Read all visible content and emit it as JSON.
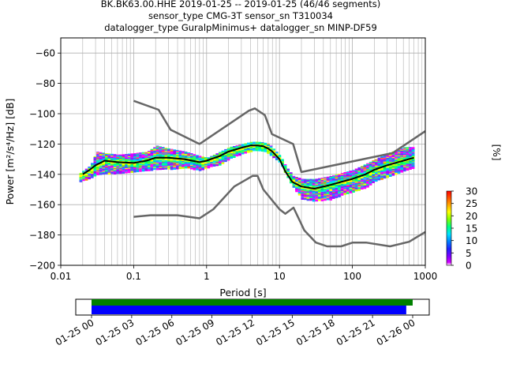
{
  "title": {
    "line1": "BK.BK63.00.HHE   2019-01-25 -- 2019-01-25  (46/46 segments)",
    "line2": "sensor_type CMG-3T sensor_sn T310034",
    "line3": "datalogger_type GuralpMinimus+ datalogger_sn MINP-DF59"
  },
  "colorbar": {
    "label": "[%]",
    "ticks": [
      "0",
      "5",
      "10",
      "15",
      "20",
      "25",
      "30"
    ],
    "range": [
      0,
      30
    ]
  },
  "timeline": {
    "ticks": [
      "01-25 00",
      "01-25 03",
      "01-25 06",
      "01-25 09",
      "01-25 12",
      "01-25 15",
      "01-25 18",
      "01-25 21",
      "01-26 00"
    ],
    "colors": {
      "data": "#008000",
      "psd": "#0000ff"
    },
    "data_coverage": [
      0.0,
      1.0
    ],
    "psd_coverage": [
      0.0,
      0.98
    ]
  },
  "chart_data": {
    "type": "heatmap",
    "title": "BK.BK63.00.HHE   2019-01-25 -- 2019-01-25  (46/46 segments)",
    "xlabel": "Period [s]",
    "ylabel": "Power [m²/s⁴/Hz] [dB]",
    "xscale": "log",
    "xlim": [
      0.01,
      1000
    ],
    "ylim": [
      -200,
      -50
    ],
    "xticks": [
      "0.01",
      "0.1",
      "1",
      "10",
      "100",
      "1000"
    ],
    "yticks": [
      "−60",
      "−80",
      "−100",
      "−120",
      "−140",
      "−160",
      "−180",
      "−200"
    ],
    "grid": true,
    "nlnm": {
      "period": [
        0.1,
        0.17,
        0.4,
        0.8,
        1.24,
        2.4,
        4.3,
        5.0,
        6.0,
        10.0,
        12.0,
        15.6,
        21.9,
        31.6,
        45.0,
        70.0,
        101.0,
        154.0,
        328.0,
        600.0,
        1000.0
      ],
      "power": [
        -168.0,
        -167.0,
        -167.0,
        -169.0,
        -163.0,
        -148.0,
        -141.0,
        -141.0,
        -150.0,
        -163.0,
        -166.0,
        -162.0,
        -177.0,
        -185.0,
        -187.5,
        -187.5,
        -185.0,
        -185.0,
        -187.5,
        -184.5,
        -178.0
      ]
    },
    "nhnm": {
      "period": [
        0.1,
        0.22,
        0.32,
        0.8,
        3.8,
        4.6,
        6.3,
        7.9,
        15.4,
        20.0,
        354.8,
        1000.0
      ],
      "power": [
        -91.5,
        -97.4,
        -110.5,
        -120.0,
        -98.0,
        -96.5,
        -101.0,
        -113.5,
        -120.0,
        -138.5,
        -126.0,
        -111.5
      ]
    },
    "mean": {
      "period": [
        0.02,
        0.025,
        0.03,
        0.04,
        0.06,
        0.1,
        0.15,
        0.2,
        0.3,
        0.5,
        0.8,
        1.0,
        1.5,
        2.0,
        3.0,
        4.0,
        5.0,
        6.0,
        7.0,
        8.0,
        10.0,
        12.0,
        15.0,
        20.0,
        30.0,
        50.0,
        70.0,
        100.0,
        150.0,
        200.0,
        300.0,
        500.0,
        700.0
      ],
      "power": [
        -140.0,
        -137.0,
        -134.0,
        -131.0,
        -132.0,
        -132.5,
        -131.0,
        -129.0,
        -129.0,
        -130.0,
        -132.0,
        -131.0,
        -128.0,
        -125.0,
        -122.5,
        -121.0,
        -121.0,
        -121.5,
        -123.0,
        -125.0,
        -130.0,
        -138.0,
        -145.0,
        -148.0,
        -149.5,
        -147.0,
        -145.0,
        -143.0,
        -140.0,
        -137.0,
        -134.0,
        -131.0,
        -129.0
      ]
    },
    "band": {
      "period": [
        0.018,
        0.025,
        0.03,
        0.04,
        0.06,
        0.1,
        0.15,
        0.2,
        0.3,
        0.5,
        0.8,
        1.0,
        1.5,
        2.0,
        3.0,
        4.0,
        5.0,
        6.0,
        7.0,
        8.0,
        10.0,
        12.0,
        15.0,
        20.0,
        30.0,
        50.0,
        70.0,
        100.0,
        150.0,
        200.0,
        300.0,
        500.0,
        700.0
      ],
      "upper": [
        -139.0,
        -134.0,
        -125.0,
        -126.0,
        -127.0,
        -126.0,
        -125.0,
        -121.0,
        -123.0,
        -125.0,
        -128.0,
        -129.0,
        -125.0,
        -122.0,
        -120.0,
        -118.5,
        -118.5,
        -119.0,
        -120.0,
        -123.0,
        -128.0,
        -135.0,
        -141.0,
        -143.0,
        -143.0,
        -141.0,
        -139.0,
        -137.0,
        -133.0,
        -130.0,
        -126.0,
        -122.0,
        -122.0
      ],
      "lower": [
        -144.0,
        -142.0,
        -140.0,
        -139.0,
        -139.0,
        -138.0,
        -137.0,
        -136.0,
        -136.0,
        -135.0,
        -137.0,
        -135.0,
        -133.0,
        -129.0,
        -126.0,
        -124.0,
        -123.5,
        -124.0,
        -126.0,
        -128.0,
        -132.0,
        -140.0,
        -148.0,
        -156.0,
        -157.0,
        -156.0,
        -153.0,
        -151.0,
        -148.0,
        -144.0,
        -141.0,
        -137.0,
        -135.0
      ]
    }
  }
}
